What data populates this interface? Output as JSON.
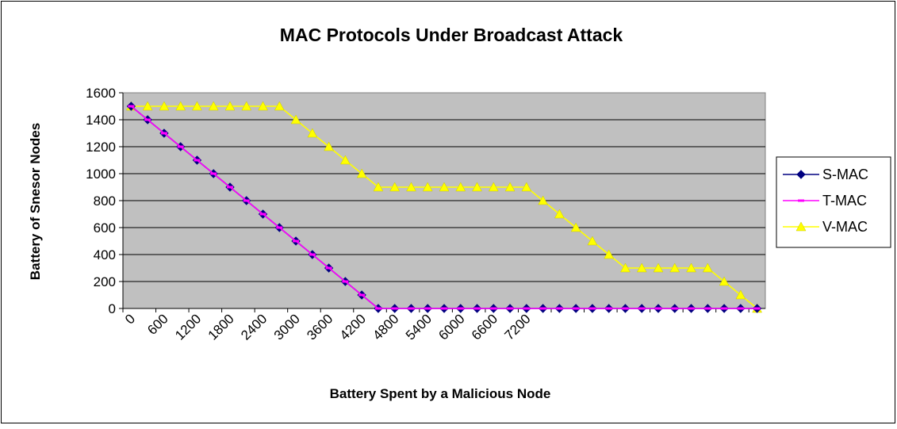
{
  "chart_data": {
    "type": "line",
    "title": "MAC Protocols Under Broadcast Attack",
    "xlabel": "Battery Spent by a Malicious Node",
    "ylabel": "Battery of Snesor Nodes",
    "x": [
      0,
      300,
      600,
      900,
      1200,
      1500,
      1800,
      2100,
      2400,
      2700,
      3000,
      3300,
      3600,
      3900,
      4200,
      4500,
      4800,
      5100,
      5400,
      5700,
      6000,
      6300,
      6600,
      6900,
      7200,
      7500,
      7800,
      8100,
      8400,
      8700,
      9000,
      9300,
      9600,
      9900,
      10200,
      10500,
      10800,
      11100,
      11400
    ],
    "x_tick_labels": [
      "0",
      "600",
      "1200",
      "1800",
      "2400",
      "3000",
      "3600",
      "4200",
      "4800",
      "5400",
      "6000",
      "6600",
      "7200"
    ],
    "y_ticks": [
      0,
      200,
      400,
      600,
      800,
      1000,
      1200,
      1400,
      1600
    ],
    "ylim": [
      0,
      1600
    ],
    "grid": true,
    "legend_position": "right",
    "series": [
      {
        "name": "S-MAC",
        "color": "#000080",
        "marker": "diamond",
        "values": [
          1500,
          1400,
          1300,
          1200,
          1100,
          1000,
          900,
          800,
          700,
          600,
          500,
          400,
          300,
          200,
          100,
          0,
          0,
          0,
          0,
          0,
          0,
          0,
          0,
          0,
          0,
          0,
          0,
          0,
          0,
          0,
          0,
          0,
          0,
          0,
          0,
          0,
          0,
          0,
          0
        ]
      },
      {
        "name": "T-MAC",
        "color": "#FF00FF",
        "marker": "dash",
        "values": [
          1500,
          1400,
          1300,
          1200,
          1100,
          1000,
          900,
          800,
          700,
          600,
          500,
          400,
          300,
          200,
          100,
          0,
          0,
          0,
          0,
          0,
          0,
          0,
          0,
          0,
          0,
          0,
          0,
          0,
          0,
          0,
          0,
          0,
          0,
          0,
          0,
          0,
          0,
          0,
          0
        ]
      },
      {
        "name": "V-MAC",
        "color": "#FFFF00",
        "marker": "triangle",
        "values": [
          1500,
          1500,
          1500,
          1500,
          1500,
          1500,
          1500,
          1500,
          1500,
          1500,
          1400,
          1300,
          1200,
          1100,
          1000,
          900,
          900,
          900,
          900,
          900,
          900,
          900,
          900,
          900,
          900,
          800,
          700,
          600,
          500,
          400,
          300,
          300,
          300,
          300,
          300,
          300,
          200,
          100,
          0
        ]
      }
    ]
  }
}
